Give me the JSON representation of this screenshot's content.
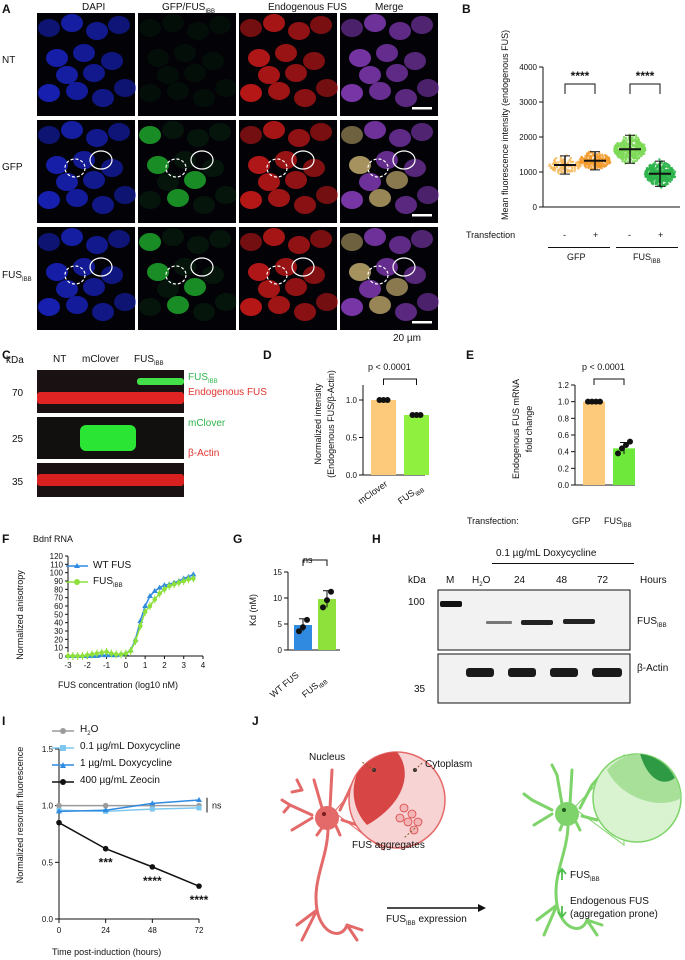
{
  "panels": {
    "A": "A",
    "B": "B",
    "C": "C",
    "D": "D",
    "E": "E",
    "F": "F",
    "G": "G",
    "H": "H",
    "I": "I",
    "J": "J"
  },
  "panel_a": {
    "columns": [
      "DAPI",
      "GFP/FUS",
      "Endogenous FUS",
      "Merge"
    ],
    "gfp_col_sub": "IBB",
    "rows": [
      "NT",
      "GFP",
      "FUS"
    ],
    "fus_row_sub": "IBB",
    "scale": "20 µm",
    "colors": {
      "dapi": "#1a24c9",
      "gfp": "#1fa52a",
      "fus": "#d11a1a",
      "merge": "#8a3dbf"
    }
  },
  "panel_b": {
    "ylabel": "Mean fluorescence intensity (endogenous FUS)",
    "yticks": [
      "0",
      "1000",
      "2000",
      "3000",
      "4000"
    ],
    "sig": [
      "****",
      "****"
    ],
    "row_label": "Transfection",
    "signs": [
      "-",
      "+",
      "-",
      "+"
    ],
    "groups": [
      "GFP",
      "FUS"
    ],
    "group_sub": "IBB"
  },
  "panel_c": {
    "kda": "kDa",
    "lanes": [
      "NT",
      "mClover",
      "FUS"
    ],
    "lane_sub": "IBB",
    "markers": [
      "70",
      "25",
      "35"
    ],
    "band_fus": "FUS",
    "band_fus_sub": "IBB",
    "band_endo": "Endogenous FUS",
    "band_mclover": "mClover",
    "band_actin": "β-Actin"
  },
  "panel_d": {
    "ylabel1": "Normalized intensity",
    "ylabel2": "(Endogenous FUS/β-Actin)",
    "p": "p < 0.0001",
    "yticks": [
      "0.0",
      "0.5",
      "1.0"
    ],
    "categories": [
      "mClover",
      "FUS"
    ],
    "cat_sub": "IBB"
  },
  "panel_e": {
    "ylabel1": "Endogenous FUS mRNA",
    "ylabel2": "fold change",
    "p": "p < 0.0001",
    "yticks": [
      "0.0",
      "0.2",
      "0.4",
      "0.6",
      "0.8",
      "1.0",
      "1.2"
    ],
    "row_label": "Transfection:",
    "categories": [
      "GFP",
      "FUS"
    ],
    "cat_sub": "IBB"
  },
  "panel_f": {
    "title": "Bdnf RNA",
    "ylabel": "Normalized anisotropy",
    "xlabel": "FUS concentration (log10 nM)",
    "yticks": [
      "0",
      "10",
      "20",
      "30",
      "40",
      "50",
      "60",
      "70",
      "80",
      "90",
      "100",
      "110",
      "120"
    ],
    "xticks": [
      "-3",
      "-2",
      "-1",
      "0",
      "1",
      "2",
      "3",
      "4"
    ],
    "legend": [
      "WT FUS",
      "FUS"
    ],
    "legend_sub": "IBB"
  },
  "panel_g": {
    "ylabel": "Kd (nM)",
    "yticks": [
      "0",
      "5",
      "10",
      "15"
    ],
    "ns": "ns",
    "categories": [
      "WT FUS",
      "FUS"
    ],
    "cat_sub": "IBB"
  },
  "panel_h": {
    "treatment": "0.1 µg/mL Doxycycline",
    "kda": "kDa",
    "lanes": [
      "M",
      "H",
      "24",
      "48",
      "72"
    ],
    "h2o_sub": "2",
    "h2o_tail": "O",
    "hours": "Hours",
    "markers": [
      "100",
      "35"
    ],
    "band_fus": "FUS",
    "band_fus_sub": "IBB",
    "band_actin": "β-Actin"
  },
  "panel_i": {
    "ylabel": "Normalized resorufin fluorescence",
    "xlabel": "Time post-induction (hours)",
    "yticks": [
      "0.0",
      "0.5",
      "1.0",
      "1.5"
    ],
    "xticks": [
      "0",
      "24",
      "48",
      "72"
    ],
    "legend": [
      "H",
      "0.1 µg/mL Doxycycline",
      "1 µg/mL Doxycycline",
      "400 µg/mL Zeocin"
    ],
    "legend_h2o_sub": "2",
    "legend_h2o_tail": "O",
    "ns": "ns",
    "sig": [
      "***",
      "****",
      "****"
    ]
  },
  "panel_j": {
    "nucleus": "Nucleus",
    "cytoplasm": "Cytoplasm",
    "aggregates": "FUS aggregates",
    "arrow_label": "FUS",
    "arrow_sub": "IBB",
    "arrow_tail": " expression",
    "up_label": "FUS",
    "up_sub": "IBB",
    "down_label1": "Endogenous FUS",
    "down_label2": "(aggregation prone)"
  },
  "chart_data": [
    {
      "type": "scatter",
      "panel": "B",
      "ylabel": "Mean fluorescence intensity (endogenous FUS)",
      "ylim": [
        0,
        4000
      ],
      "categories": [
        "GFP -",
        "GFP +",
        "FUSIBB -",
        "FUSIBB +"
      ],
      "means": [
        1200,
        1320,
        1650,
        950
      ],
      "colors": [
        "#f6b95a",
        "#f39a2a",
        "#7ed957",
        "#2eb44b"
      ]
    },
    {
      "type": "bar",
      "panel": "D",
      "categories": [
        "mClover",
        "FUSIBB"
      ],
      "values": [
        1.0,
        0.8
      ],
      "ylim": [
        0,
        1.2
      ],
      "colors": [
        "#fdc97a",
        "#8ff040"
      ]
    },
    {
      "type": "bar",
      "panel": "E",
      "categories": [
        "GFP",
        "FUSIBB"
      ],
      "values": [
        1.0,
        0.44
      ],
      "ylim": [
        0,
        1.2
      ],
      "colors": [
        "#fdc97a",
        "#6ee83a"
      ]
    },
    {
      "type": "line",
      "panel": "F",
      "x": [
        -3,
        -2.75,
        -2.5,
        -2.25,
        -2,
        -1.75,
        -1.5,
        -1.25,
        -1,
        -0.75,
        -0.5,
        -0.25,
        0,
        0.25,
        0.5,
        0.75,
        1,
        1.25,
        1.5,
        1.75,
        2,
        2.25,
        2.5,
        2.75,
        3,
        3.25,
        3.5
      ],
      "series": [
        {
          "name": "WT FUS",
          "values": [
            0,
            0,
            0,
            0,
            0,
            0,
            0,
            1,
            1,
            1,
            1,
            2,
            3,
            7,
            20,
            42,
            60,
            72,
            78,
            82,
            85,
            86,
            88,
            90,
            93,
            95,
            98
          ],
          "color": "#2f8ae0"
        },
        {
          "name": "FUSIBB",
          "values": [
            0,
            0,
            0,
            0,
            1,
            2,
            3,
            4,
            5,
            3,
            2,
            2,
            3,
            6,
            18,
            36,
            53,
            60,
            68,
            75,
            80,
            84,
            86,
            88,
            90,
            92,
            93
          ],
          "color": "#8ee03a"
        }
      ],
      "ylim": [
        0,
        120
      ],
      "xlim": [
        -3,
        4
      ]
    },
    {
      "type": "bar",
      "panel": "G",
      "categories": [
        "WT FUS",
        "FUSIBB"
      ],
      "values": [
        4.8,
        9.8
      ],
      "ylim": [
        0,
        15
      ],
      "points": [
        [
          3.6,
          4.4,
          5.8
        ],
        [
          8.2,
          9.6,
          11.2
        ]
      ],
      "colors": [
        "#2f8ae0",
        "#8ee03a"
      ]
    },
    {
      "type": "line",
      "panel": "I",
      "x": [
        0,
        24,
        48,
        72
      ],
      "series": [
        {
          "name": "H2O",
          "values": [
            1.0,
            1.0,
            1.0,
            1.0
          ],
          "color": "#9b9b9b"
        },
        {
          "name": "0.1 µg/mL Doxycycline",
          "values": [
            0.96,
            0.95,
            0.97,
            0.98
          ],
          "color": "#7ec8f0"
        },
        {
          "name": "1 µg/mL Doxycycline",
          "values": [
            0.95,
            0.96,
            1.02,
            1.05
          ],
          "color": "#2f8ae0"
        },
        {
          "name": "400 µg/mL Zeocin",
          "values": [
            0.85,
            0.62,
            0.46,
            0.29
          ],
          "color": "#111111"
        }
      ],
      "ylim": [
        0,
        1.5
      ],
      "xticks": [
        0,
        24,
        48,
        72
      ]
    }
  ]
}
